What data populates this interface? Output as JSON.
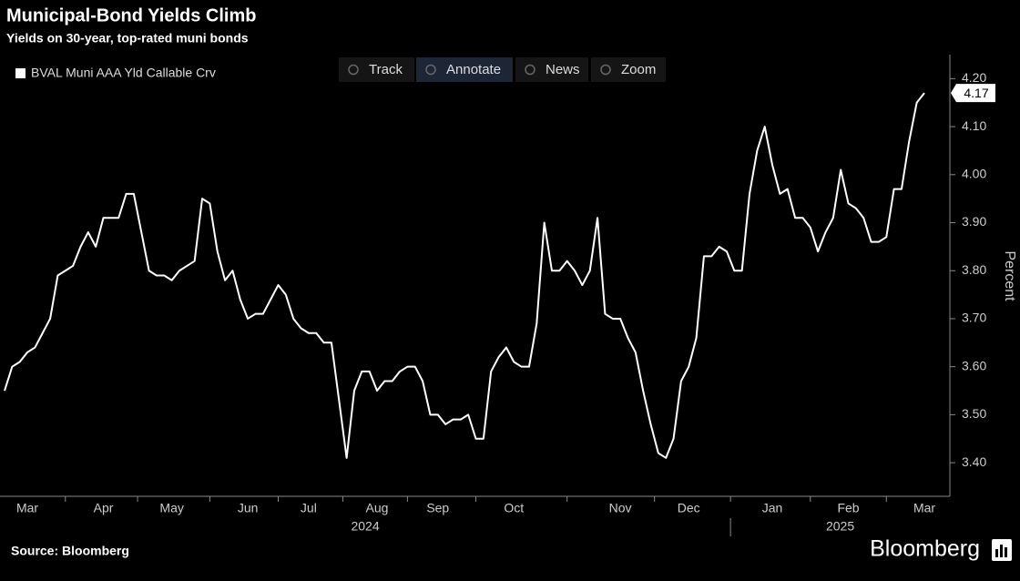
{
  "chart_data": {
    "type": "line",
    "title": "Municipal-Bond Yields Climb",
    "subtitle": "Yields on 30-year, top-rated muni bonds",
    "toolbar": [
      "Track",
      "Annotate",
      "News",
      "Zoom"
    ],
    "y_label": "Percent",
    "source": "Source: Bloomberg",
    "brand": "Bloomberg",
    "years": [
      "2024",
      "2025"
    ],
    "categories": [
      null,
      null,
      null,
      "Mar",
      null,
      null,
      null,
      null,
      null,
      null,
      null,
      null,
      null,
      "Apr",
      null,
      null,
      null,
      null,
      null,
      null,
      null,
      null,
      "May",
      null,
      null,
      null,
      null,
      null,
      null,
      null,
      null,
      null,
      "Jun",
      null,
      null,
      null,
      null,
      null,
      null,
      null,
      "Jul",
      null,
      null,
      null,
      null,
      null,
      null,
      null,
      null,
      "Aug",
      null,
      null,
      null,
      null,
      null,
      null,
      null,
      "Sep",
      null,
      null,
      null,
      null,
      null,
      null,
      null,
      null,
      null,
      "Oct",
      null,
      null,
      null,
      null,
      null,
      null,
      null,
      null,
      null,
      null,
      null,
      null,
      null,
      "Nov",
      null,
      null,
      null,
      null,
      null,
      null,
      null,
      null,
      "Dec",
      null,
      null,
      null,
      null,
      null,
      null,
      null,
      null,
      null,
      null,
      "Jan",
      null,
      null,
      null,
      null,
      null,
      null,
      null,
      null,
      null,
      "Feb",
      null,
      null,
      null,
      null,
      null,
      null,
      null,
      null,
      null,
      "Mar"
    ],
    "series": [
      {
        "name": "BVAL Muni AAA Yld Callable Crv",
        "color": "#ffffff",
        "values": [
          3.55,
          3.6,
          3.61,
          3.63,
          3.64,
          3.67,
          3.7,
          3.79,
          3.8,
          3.81,
          3.85,
          3.88,
          3.85,
          3.91,
          3.91,
          3.91,
          3.96,
          3.96,
          3.88,
          3.8,
          3.79,
          3.79,
          3.78,
          3.8,
          3.81,
          3.82,
          3.95,
          3.94,
          3.84,
          3.78,
          3.8,
          3.74,
          3.7,
          3.71,
          3.71,
          3.74,
          3.77,
          3.75,
          3.7,
          3.68,
          3.67,
          3.67,
          3.65,
          3.65,
          3.53,
          3.41,
          3.55,
          3.59,
          3.59,
          3.55,
          3.57,
          3.57,
          3.59,
          3.6,
          3.6,
          3.57,
          3.5,
          3.5,
          3.48,
          3.49,
          3.49,
          3.5,
          3.45,
          3.45,
          3.59,
          3.62,
          3.64,
          3.61,
          3.6,
          3.6,
          3.69,
          3.9,
          3.8,
          3.8,
          3.82,
          3.8,
          3.77,
          3.8,
          3.91,
          3.71,
          3.7,
          3.7,
          3.66,
          3.63,
          3.55,
          3.48,
          3.42,
          3.41,
          3.45,
          3.57,
          3.6,
          3.66,
          3.83,
          3.83,
          3.85,
          3.84,
          3.8,
          3.8,
          3.96,
          4.05,
          4.1,
          4.02,
          3.96,
          3.97,
          3.91,
          3.91,
          3.89,
          3.84,
          3.88,
          3.91,
          4.01,
          3.94,
          3.93,
          3.91,
          3.86,
          3.86,
          3.87,
          3.97,
          3.97,
          4.07,
          4.15,
          4.17
        ]
      }
    ],
    "ylim": [
      3.33,
      4.25
    ],
    "yticks": [
      {
        "value": 3.4,
        "label": "3.40"
      },
      {
        "value": 3.5,
        "label": "3.50"
      },
      {
        "value": 3.6,
        "label": "3.60"
      },
      {
        "value": 3.7,
        "label": "3.70"
      },
      {
        "value": 3.8,
        "label": "3.80"
      },
      {
        "value": 3.9,
        "label": "3.90"
      },
      {
        "value": 4.0,
        "label": "4.00"
      },
      {
        "value": 4.1,
        "label": "4.10"
      },
      {
        "value": 4.2,
        "label": "4.20"
      }
    ],
    "grid": false,
    "legend": "top-left"
  }
}
